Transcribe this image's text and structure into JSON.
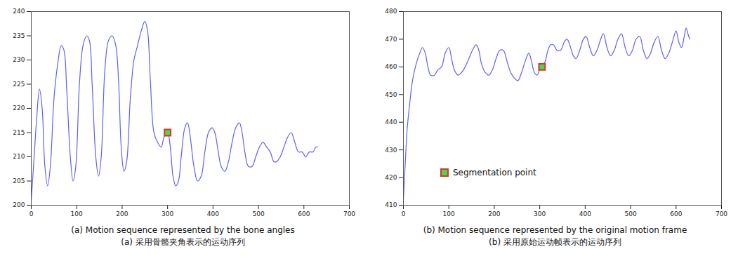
{
  "chart_data": [
    {
      "type": "line",
      "caption": [
        "(a) Motion sequence represented by the bone angles",
        "(a) 采用骨骼夹角表示的运动序列"
      ],
      "xlim": [
        0,
        700
      ],
      "xticks": [
        0,
        100,
        200,
        300,
        400,
        500,
        600,
        700
      ],
      "ylim": [
        200,
        240
      ],
      "yticks": [
        200,
        205,
        210,
        215,
        220,
        225,
        230,
        235,
        240
      ],
      "grid": false,
      "series": [
        {
          "type": "line",
          "color": "#5f5fff",
          "x": [
            0,
            5,
            12,
            18,
            24,
            30,
            36,
            42,
            50,
            58,
            66,
            72,
            78,
            86,
            92,
            98,
            106,
            114,
            122,
            128,
            134,
            142,
            148,
            154,
            162,
            170,
            178,
            186,
            192,
            198,
            204,
            210,
            218,
            226,
            234,
            242,
            250,
            256,
            262,
            270,
            278,
            286,
            292,
            300,
            306,
            312,
            318,
            324,
            330,
            338,
            344,
            350,
            358,
            366,
            374,
            382,
            390,
            398,
            404,
            410,
            418,
            426,
            434,
            442,
            450,
            458,
            464,
            470,
            478,
            486,
            494,
            502,
            510,
            518,
            526,
            534,
            540,
            548,
            556,
            564,
            572,
            580,
            588,
            596,
            604,
            612,
            620,
            626,
            630
          ],
          "values": [
            201,
            208,
            218,
            224,
            220,
            208,
            204,
            208,
            222,
            229,
            233,
            232,
            224,
            210,
            205,
            208,
            225,
            233,
            235,
            234,
            225,
            210,
            206,
            210,
            228,
            234,
            235,
            233,
            226,
            212,
            207,
            209,
            222,
            230,
            233,
            236,
            238,
            236,
            226,
            215,
            213,
            212,
            214,
            215,
            212,
            206,
            204,
            205,
            210,
            216,
            217,
            214,
            208,
            205,
            206,
            211,
            215,
            216,
            215,
            212,
            208,
            207,
            209,
            213,
            216,
            217,
            215,
            211,
            208,
            208,
            210,
            212,
            213,
            212,
            211,
            209,
            209,
            210,
            212,
            214,
            215,
            213,
            211,
            211,
            210,
            211,
            211,
            212,
            212
          ]
        },
        {
          "type": "scatter",
          "marker": "square",
          "color": "#44dd44",
          "x": [
            300
          ],
          "values": [
            215
          ]
        }
      ]
    },
    {
      "type": "line",
      "caption": [
        "(b) Motion sequence represented by the original motion frame",
        "(b) 采用原始运动帧表示的运动序列"
      ],
      "xlim": [
        0,
        700
      ],
      "xticks": [
        0,
        100,
        200,
        300,
        400,
        500,
        600,
        700
      ],
      "ylim": [
        410,
        480
      ],
      "yticks": [
        410,
        420,
        430,
        440,
        450,
        460,
        470,
        480
      ],
      "grid": false,
      "legend": "lower left",
      "series": [
        {
          "type": "line",
          "color": "#5f5fff",
          "x": [
            0,
            4,
            8,
            14,
            20,
            28,
            36,
            42,
            48,
            54,
            60,
            68,
            76,
            84,
            92,
            100,
            106,
            112,
            120,
            128,
            136,
            144,
            152,
            160,
            166,
            172,
            180,
            188,
            196,
            204,
            212,
            220,
            228,
            236,
            244,
            252,
            260,
            268,
            276,
            282,
            288,
            294,
            300,
            305,
            312,
            318,
            324,
            330,
            338,
            346,
            354,
            360,
            366,
            374,
            380,
            388,
            396,
            402,
            410,
            418,
            426,
            434,
            440,
            448,
            456,
            464,
            472,
            480,
            488,
            496,
            504,
            512,
            520,
            528,
            536,
            544,
            552,
            560,
            568,
            576,
            584,
            592,
            600,
            606,
            612,
            618,
            622,
            626,
            630
          ],
          "values": [
            412,
            425,
            437,
            447,
            455,
            461,
            465,
            467,
            465,
            460,
            457,
            457,
            459,
            460,
            465,
            467,
            463,
            459,
            457,
            458,
            460,
            463,
            466,
            468,
            466,
            461,
            458,
            457,
            459,
            463,
            466,
            466,
            462,
            458,
            456,
            455,
            458,
            462,
            465,
            462,
            458,
            457,
            459,
            460,
            462,
            466,
            468,
            468,
            466,
            466,
            469,
            470,
            468,
            464,
            463,
            466,
            470,
            471,
            467,
            464,
            466,
            470,
            472,
            467,
            464,
            466,
            470,
            472,
            467,
            464,
            466,
            470,
            471,
            466,
            463,
            465,
            469,
            471,
            466,
            463,
            465,
            469,
            473,
            469,
            467,
            471,
            474,
            472,
            470
          ]
        },
        {
          "type": "scatter",
          "marker": "square",
          "color": "#44dd44",
          "name": "Segmentation point",
          "x": [
            305
          ],
          "values": [
            460
          ]
        }
      ]
    }
  ]
}
